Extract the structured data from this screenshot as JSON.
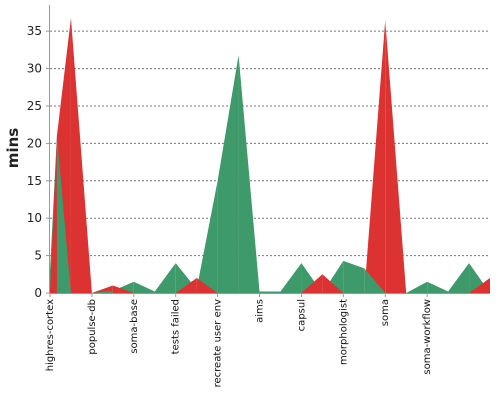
{
  "chart_data": {
    "type": "area",
    "title": "",
    "xlabel": "",
    "ylabel": "mins",
    "ylim": [
      0,
      38.5
    ],
    "yticks": [
      0,
      5,
      10,
      15,
      20,
      25,
      30,
      35
    ],
    "grid": true,
    "colors": {
      "above": "#dc3232",
      "below": "#3e9a6a"
    },
    "categories": [
      "highres-cortex",
      "populse-db",
      "soma-base",
      "tests failed",
      "recreate user env",
      "aims",
      "capsul",
      "morphologist",
      "soma",
      "soma-workflow"
    ],
    "points": [
      {
        "slot": 0.0,
        "red": 0.0,
        "green": 3.0
      },
      {
        "slot": 0.33,
        "red": 21.0,
        "green": 21.0
      },
      {
        "slot": 1.0,
        "red": 36.8,
        "green": 0.0
      },
      {
        "slot": 2.0,
        "red": 0.0,
        "green": 0.0
      },
      {
        "slot": 3.0,
        "red": 1.0,
        "green": 0.3
      },
      {
        "slot": 4.0,
        "red": 0.0,
        "green": 1.5
      },
      {
        "slot": 5.0,
        "red": 0.0,
        "green": 0.2
      },
      {
        "slot": 6.0,
        "red": 0.0,
        "green": 4.0
      },
      {
        "slot": 7.0,
        "red": 2.0,
        "green": 0.5
      },
      {
        "slot": 8.0,
        "red": 0.0,
        "green": 15.0
      },
      {
        "slot": 9.0,
        "red": 0.0,
        "green": 31.8
      },
      {
        "slot": 10.0,
        "red": 0.0,
        "green": 0.2
      },
      {
        "slot": 11.0,
        "red": 0.0,
        "green": 0.2
      },
      {
        "slot": 12.0,
        "red": 0.0,
        "green": 4.0
      },
      {
        "slot": 13.0,
        "red": 2.5,
        "green": 0.0
      },
      {
        "slot": 14.0,
        "red": 0.0,
        "green": 4.3
      },
      {
        "slot": 15.0,
        "red": 0.0,
        "green": 3.3
      },
      {
        "slot": 16.0,
        "red": 36.5,
        "green": 0.0
      },
      {
        "slot": 17.0,
        "red": 0.0,
        "green": 0.0
      },
      {
        "slot": 18.0,
        "red": 0.0,
        "green": 1.5
      },
      {
        "slot": 19.0,
        "red": 0.0,
        "green": 0.2
      },
      {
        "slot": 20.0,
        "red": 0.0,
        "green": 4.0
      },
      {
        "slot": 21.0,
        "red": 2.0,
        "green": 0.0
      }
    ]
  }
}
